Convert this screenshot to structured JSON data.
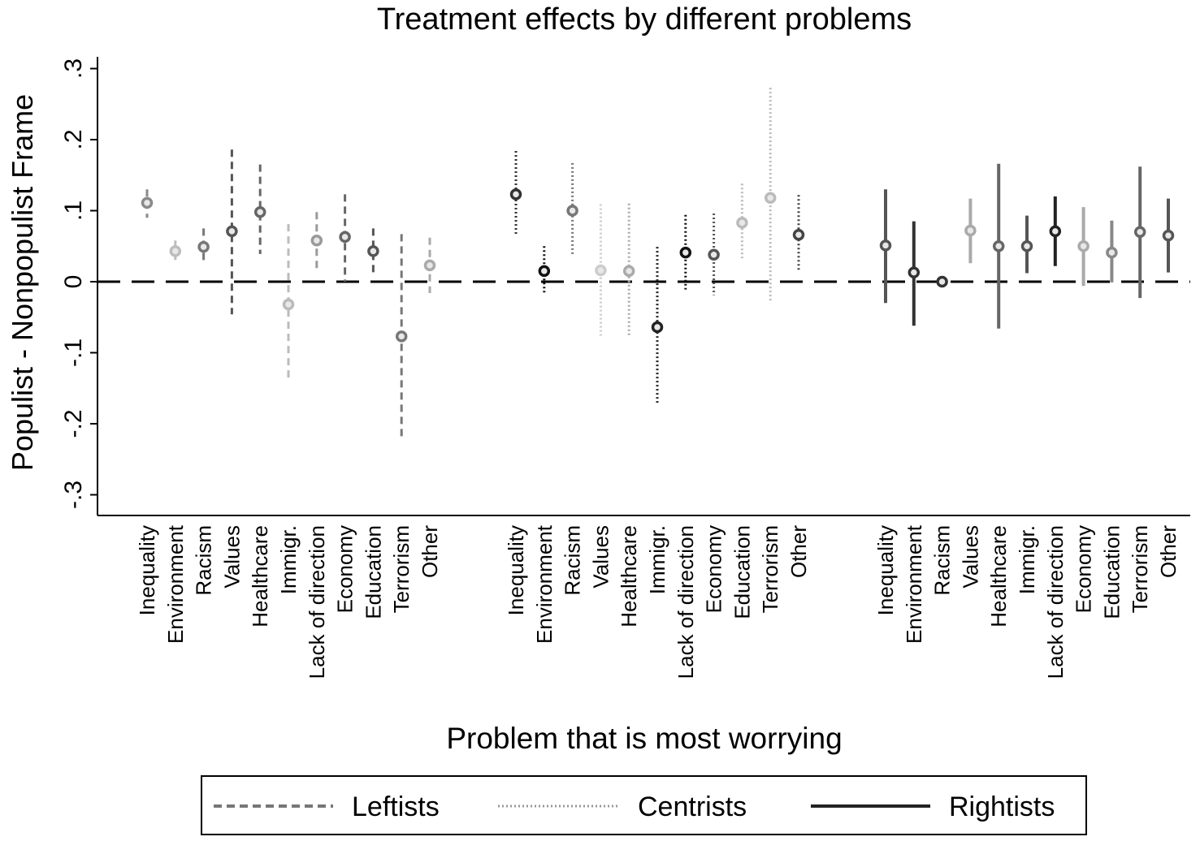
{
  "chart_data": {
    "type": "scatter",
    "title": "Treatment effects by different problems",
    "xlabel": "Problem that is most worrying",
    "ylabel": "Populist - Nonpopulist Frame",
    "ylim": [
      -0.3,
      0.3
    ],
    "yticks": [
      -0.3,
      -0.2,
      -0.1,
      0,
      0.1,
      0.2,
      0.3
    ],
    "ytick_labels": [
      "-.3",
      "-.2",
      "-.1",
      "0",
      ".1",
      ".2",
      ".3"
    ],
    "grid": false,
    "reference_line": 0,
    "categories": [
      "Inequality",
      "Environment",
      "Racism",
      "Values",
      "Healthcare",
      "Immigr.",
      "Lack of direction",
      "Economy",
      "Education",
      "Terrorism",
      "Other"
    ],
    "legend": {
      "placement": "bottom",
      "entries": [
        "Leftists",
        "Centrists",
        "Rightists"
      ]
    },
    "series": [
      {
        "name": "Leftists",
        "line_style": "dashed",
        "estimates": [
          0.111,
          0.043,
          0.049,
          0.071,
          0.098,
          -0.032,
          0.058,
          0.063,
          0.043,
          -0.077,
          0.023
        ],
        "ci_high": [
          0.13,
          0.058,
          0.075,
          0.186,
          0.165,
          0.081,
          0.098,
          0.123,
          0.075,
          0.067,
          0.062
        ],
        "ci_low": [
          0.09,
          0.029,
          0.026,
          -0.046,
          0.039,
          -0.141,
          0.017,
          0.0,
          0.008,
          -0.224,
          -0.016
        ],
        "colors": [
          "#8a8a8a",
          "#bdbdbd",
          "#777777",
          "#555555",
          "#666666",
          "#bbbbbb",
          "#9a9a9a",
          "#666666",
          "#555555",
          "#777777",
          "#aaaaaa"
        ]
      },
      {
        "name": "Centrists",
        "line_style": "dotted",
        "estimates": [
          0.123,
          0.015,
          0.1,
          0.016,
          0.015,
          -0.064,
          0.041,
          0.038,
          0.083,
          0.118,
          0.066
        ],
        "ci_high": [
          0.184,
          0.05,
          0.167,
          0.109,
          0.11,
          0.049,
          0.094,
          0.096,
          0.138,
          0.273,
          0.122
        ],
        "ci_low": [
          0.065,
          -0.017,
          0.039,
          -0.078,
          -0.077,
          -0.171,
          -0.011,
          -0.019,
          0.033,
          -0.03,
          0.016
        ],
        "colors": [
          "#333333",
          "#111111",
          "#777777",
          "#cccccc",
          "#aaaaaa",
          "#222222",
          "#111111",
          "#555555",
          "#bbbbbb",
          "#bbbbbb",
          "#444444"
        ]
      },
      {
        "name": "Rightists",
        "line_style": "solid",
        "estimates": [
          0.051,
          0.013,
          0.0,
          0.072,
          0.05,
          0.05,
          0.071,
          0.05,
          0.041,
          0.07,
          0.065
        ],
        "ci_high": [
          0.13,
          0.085,
          0.003,
          0.117,
          0.166,
          0.093,
          0.12,
          0.105,
          0.086,
          0.162,
          0.117
        ],
        "ci_low": [
          -0.03,
          -0.062,
          -0.003,
          0.026,
          -0.066,
          0.012,
          0.022,
          -0.006,
          -0.001,
          -0.023,
          0.013
        ],
        "colors": [
          "#555555",
          "#333333",
          "#333333",
          "#aaaaaa",
          "#666666",
          "#555555",
          "#222222",
          "#aaaaaa",
          "#888888",
          "#666666",
          "#555555"
        ]
      }
    ]
  }
}
